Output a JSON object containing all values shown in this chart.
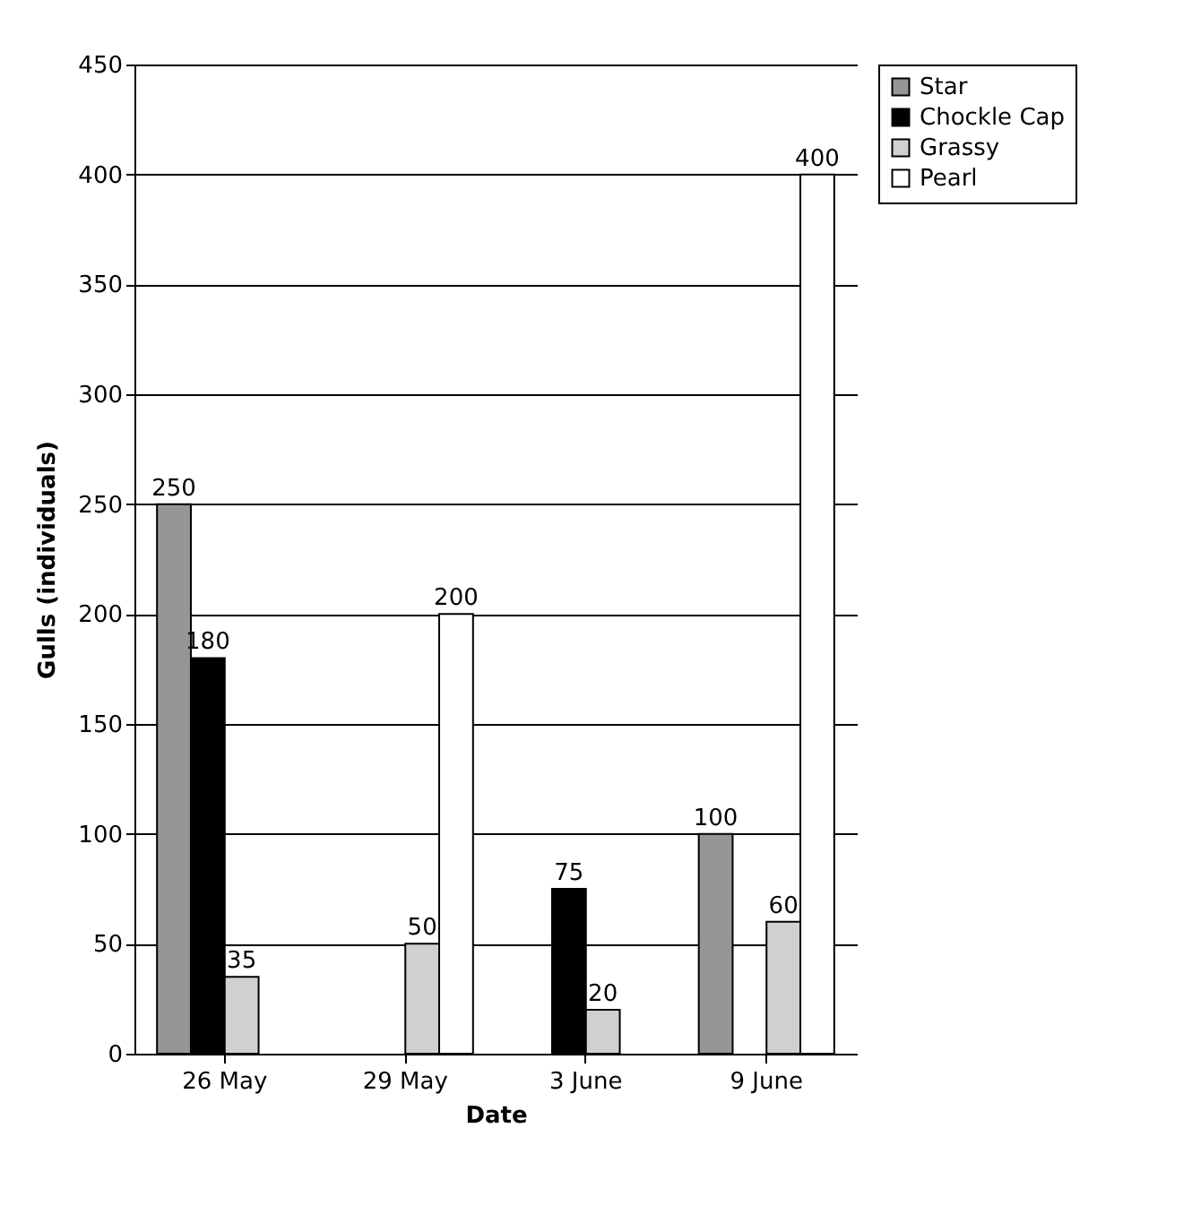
{
  "chart_data": {
    "type": "bar",
    "xlabel": "Date",
    "ylabel": "Gulls (individuals)",
    "categories": [
      "26 May",
      "29 May",
      "3 June",
      "9 June"
    ],
    "series": [
      {
        "name": "Star",
        "color": "#969696",
        "values": [
          250,
          null,
          null,
          100
        ]
      },
      {
        "name": "Chockle Cap",
        "color": "#000000",
        "values": [
          180,
          null,
          75,
          null
        ]
      },
      {
        "name": "Grassy",
        "color": "#d0d0d0",
        "values": [
          35,
          50,
          20,
          60
        ]
      },
      {
        "name": "Pearl",
        "color": "#ffffff",
        "values": [
          null,
          200,
          null,
          400
        ]
      }
    ],
    "ylim": [
      0,
      450
    ],
    "yticks": [
      0,
      50,
      100,
      150,
      200,
      250,
      300,
      350,
      400,
      450
    ],
    "grid": "y",
    "legend": "right",
    "data_labels": true
  }
}
